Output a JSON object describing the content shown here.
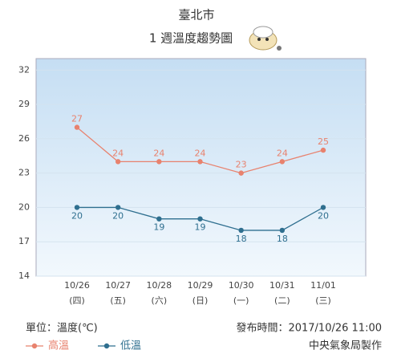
{
  "chart_data": {
    "type": "line",
    "title": "臺北市",
    "subtitle": "1 週溫度趨勢圖",
    "categories": [
      "10/26",
      "10/27",
      "10/28",
      "10/29",
      "10/30",
      "10/31",
      "11/01"
    ],
    "weekdays": [
      "(四)",
      "(五)",
      "(六)",
      "(日)",
      "(一)",
      "(二)",
      "(三)"
    ],
    "series": [
      {
        "name": "高溫",
        "color": "#e8826e",
        "values": [
          27,
          24,
          24,
          24,
          23,
          24,
          25
        ]
      },
      {
        "name": "低溫",
        "color": "#2f6f8f",
        "values": [
          20,
          20,
          19,
          19,
          18,
          18,
          20
        ]
      }
    ],
    "ylim": [
      14,
      33
    ],
    "yticks": [
      14,
      17,
      20,
      23,
      26,
      29,
      32
    ],
    "grid": true,
    "unit": "單位：溫度(℃)",
    "publish_time": "發布時間：2017/10/26 11:00",
    "source": "中央氣象局製作"
  }
}
